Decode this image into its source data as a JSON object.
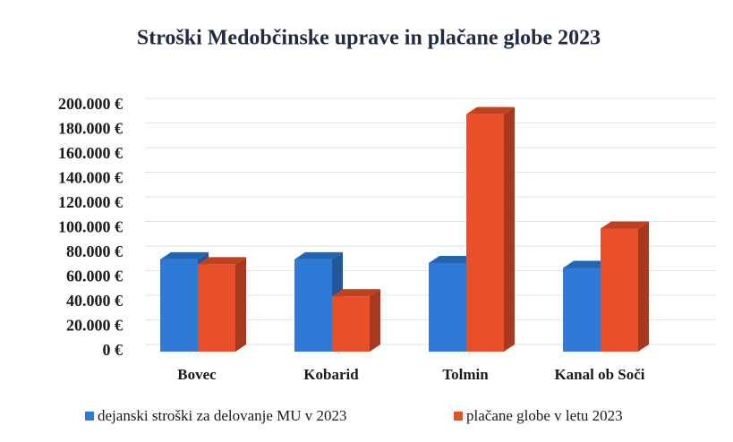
{
  "chart_data": {
    "type": "bar3d",
    "title": "Stroški Medobčinske uprave in plačane globe 2023",
    "categories": [
      "Bovec",
      "Kobarid",
      "Tolmin",
      "Kanal ob Soči"
    ],
    "series": [
      {
        "name": "dejanski stroški za delovanje MU v 2023",
        "color": "#2f7ad6",
        "values": [
          75000,
          75000,
          72000,
          68000
        ]
      },
      {
        "name": "plačane globe v letu 2023",
        "color": "#e8502a",
        "values": [
          71000,
          45000,
          193000,
          100000
        ]
      }
    ],
    "ylim": [
      0,
      200000
    ],
    "yticks": [
      {
        "value": 0,
        "label": "0 €"
      },
      {
        "value": 20000,
        "label": "20.000 €"
      },
      {
        "value": 40000,
        "label": "40.000 €"
      },
      {
        "value": 60000,
        "label": "60.000 €"
      },
      {
        "value": 80000,
        "label": "80.000 €"
      },
      {
        "value": 100000,
        "label": "100.000 €"
      },
      {
        "value": 120000,
        "label": "120.000 €"
      },
      {
        "value": 140000,
        "label": "140.000 €"
      },
      {
        "value": 160000,
        "label": "160.000 €"
      },
      {
        "value": 180000,
        "label": "180.000 €"
      },
      {
        "value": 200000,
        "label": "200.000 €"
      }
    ],
    "grid": true,
    "legend": "bottom"
  }
}
